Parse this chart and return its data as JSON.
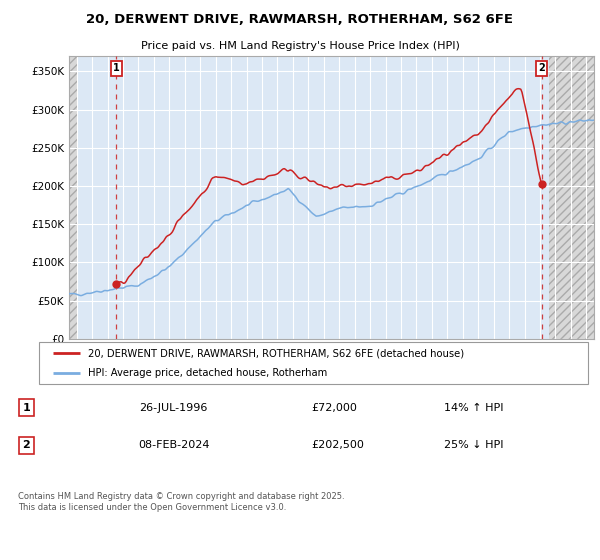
{
  "title": "20, DERWENT DRIVE, RAWMARSH, ROTHERHAM, S62 6FE",
  "subtitle": "Price paid vs. HM Land Registry's House Price Index (HPI)",
  "legend_line1": "20, DERWENT DRIVE, RAWMARSH, ROTHERHAM, S62 6FE (detached house)",
  "legend_line2": "HPI: Average price, detached house, Rotherham",
  "transaction1_label": "1",
  "transaction1_date": "26-JUL-1996",
  "transaction1_price": "£72,000",
  "transaction1_hpi": "14% ↑ HPI",
  "transaction2_label": "2",
  "transaction2_date": "08-FEB-2024",
  "transaction2_price": "£202,500",
  "transaction2_hpi": "25% ↓ HPI",
  "footnote": "Contains HM Land Registry data © Crown copyright and database right 2025.\nThis data is licensed under the Open Government Licence v3.0.",
  "ylim": [
    0,
    370000
  ],
  "yticks": [
    0,
    50000,
    100000,
    150000,
    200000,
    250000,
    300000,
    350000
  ],
  "ytick_labels": [
    "£0",
    "£50K",
    "£100K",
    "£150K",
    "£200K",
    "£250K",
    "£300K",
    "£350K"
  ],
  "hpi_color": "#7aade0",
  "price_color": "#cc2222",
  "plot_bg": "#dce8f5",
  "hatch_bg": "#d0d0d0",
  "grid_color": "#ffffff",
  "transaction1_x": 1996.57,
  "transaction2_x": 2024.1,
  "transaction1_y": 72000,
  "transaction2_y": 202500,
  "xlim_left": 1993.5,
  "xlim_right": 2027.5
}
